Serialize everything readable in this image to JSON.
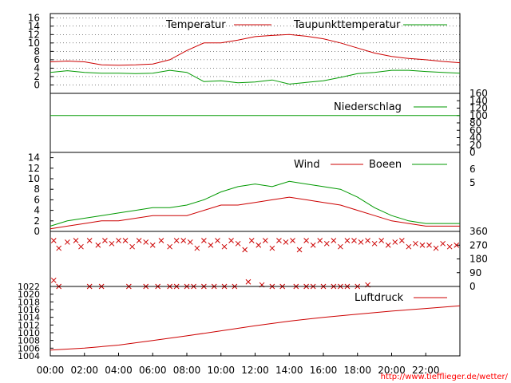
{
  "colors": {
    "primary": "#cc0000",
    "secondary": "#009900",
    "axis": "#000000",
    "credit": "#ff0000"
  },
  "credit": "http://www.tiefflieger.de/wetter/",
  "chart_data": [
    {
      "id": "temperature",
      "type": "line",
      "legend_position": "top-right",
      "grid": true,
      "x_range": [
        0,
        24
      ],
      "ylim": [
        -2,
        17
      ],
      "yticks": [
        "0",
        "2",
        "4",
        "6",
        "8",
        "10",
        "12",
        "14",
        "16"
      ],
      "series": [
        {
          "name": "Temperatur",
          "color": "#cc0000",
          "x": [
            0,
            1,
            2,
            3,
            4,
            5,
            6,
            7,
            8,
            9,
            10,
            11,
            12,
            13,
            14,
            15,
            16,
            17,
            18,
            19,
            20,
            21,
            22,
            23,
            24
          ],
          "values": [
            5.5,
            5.7,
            5.5,
            4.8,
            4.7,
            4.8,
            5.0,
            6.0,
            8.2,
            10.0,
            10.0,
            10.7,
            11.5,
            11.8,
            12.0,
            11.6,
            11.0,
            10.0,
            8.8,
            7.6,
            6.8,
            6.3,
            6.0,
            5.6,
            5.3
          ]
        },
        {
          "name": "Taupunkttemperatur",
          "color": "#009900",
          "x": [
            0,
            1,
            2,
            3,
            4,
            5,
            6,
            7,
            8,
            9,
            10,
            11,
            12,
            13,
            14,
            15,
            16,
            17,
            18,
            19,
            20,
            21,
            22,
            23,
            24
          ],
          "values": [
            3.0,
            3.4,
            3.0,
            2.8,
            2.8,
            2.7,
            2.8,
            3.5,
            3.0,
            0.8,
            1.0,
            0.5,
            0.7,
            1.2,
            0.2,
            0.6,
            1.0,
            1.8,
            2.7,
            3.0,
            3.5,
            3.5,
            3.2,
            3.0,
            2.8
          ]
        }
      ]
    },
    {
      "id": "precipitation",
      "type": "line",
      "legend_position": "top-right",
      "grid": false,
      "x_range": [
        0,
        24
      ],
      "ylim": [
        0,
        160
      ],
      "right_ticks": [
        "0",
        "20",
        "40",
        "60",
        "80",
        "100",
        "120",
        "140",
        "160"
      ],
      "series": [
        {
          "name": "Niederschlag",
          "color": "#009900",
          "x": [
            0,
            24
          ],
          "values": [
            100,
            100
          ]
        }
      ]
    },
    {
      "id": "wind",
      "type": "line",
      "legend_position": "top-right",
      "grid": false,
      "x_range": [
        0,
        24
      ],
      "ylim": [
        0,
        15
      ],
      "yticks": [
        "0",
        "2",
        "4",
        "6",
        "8",
        "10",
        "12",
        "14"
      ],
      "right_ticks": [
        "5",
        "6"
      ],
      "series": [
        {
          "name": "Wind",
          "color": "#cc0000",
          "x": [
            0,
            1,
            2,
            3,
            4,
            5,
            6,
            7,
            8,
            9,
            10,
            11,
            12,
            13,
            14,
            15,
            16,
            17,
            18,
            19,
            20,
            21,
            22,
            23,
            24
          ],
          "values": [
            0.5,
            1.0,
            1.5,
            2.0,
            2.0,
            2.5,
            3.0,
            3.0,
            3.0,
            4.0,
            5.0,
            5.0,
            5.5,
            6.0,
            6.5,
            6.0,
            5.5,
            5.0,
            4.0,
            3.0,
            2.0,
            1.5,
            1.0,
            1.0,
            1.0
          ]
        },
        {
          "name": "Boeen",
          "color": "#009900",
          "x": [
            0,
            1,
            2,
            3,
            4,
            5,
            6,
            7,
            8,
            9,
            10,
            11,
            12,
            13,
            14,
            15,
            16,
            17,
            18,
            19,
            20,
            21,
            22,
            23,
            24
          ],
          "values": [
            1.0,
            2.0,
            2.5,
            3.0,
            3.5,
            4.0,
            4.5,
            4.5,
            5.0,
            6.0,
            7.5,
            8.5,
            9.0,
            8.5,
            9.5,
            9.0,
            8.5,
            8.0,
            6.5,
            4.5,
            3.0,
            2.0,
            1.5,
            1.5,
            1.5
          ]
        }
      ]
    },
    {
      "id": "wind-direction",
      "type": "scatter",
      "grid": false,
      "x_range": [
        0,
        24
      ],
      "ylim": [
        0,
        360
      ],
      "right_ticks": [
        "0",
        "90",
        "180",
        "270",
        "360"
      ],
      "series": [
        {
          "color": "#cc0000",
          "x": [
            0.2,
            0.5,
            1.0,
            1.5,
            1.8,
            2.3,
            2.8,
            3.2,
            3.6,
            4.0,
            4.4,
            4.8,
            5.2,
            5.6,
            6.0,
            6.5,
            7.0,
            7.4,
            7.8,
            8.2,
            8.6,
            9.0,
            9.4,
            9.8,
            10.2,
            10.6,
            11.0,
            11.4,
            11.8,
            12.2,
            12.6,
            13.0,
            13.4,
            13.8,
            14.2,
            14.6,
            15.0,
            15.4,
            15.8,
            16.2,
            16.6,
            17.0,
            17.4,
            17.8,
            18.2,
            18.6,
            19.0,
            19.4,
            19.8,
            20.2,
            20.6,
            21.0,
            21.4,
            21.8,
            22.2,
            22.6,
            23.0,
            23.4,
            23.8
          ],
          "values": [
            300,
            250,
            290,
            300,
            260,
            300,
            270,
            300,
            280,
            300,
            300,
            260,
            300,
            290,
            270,
            300,
            260,
            300,
            300,
            290,
            250,
            300,
            270,
            300,
            260,
            300,
            280,
            240,
            300,
            270,
            300,
            250,
            300,
            290,
            300,
            240,
            300,
            270,
            300,
            280,
            300,
            260,
            300,
            300,
            290,
            300,
            280,
            300,
            270,
            290,
            300,
            260,
            280,
            270,
            270,
            250,
            280,
            260,
            270
          ]
        },
        {
          "color": "#cc0000",
          "x": [
            0.2,
            0.5,
            2.3,
            3.0,
            4.6,
            5.6,
            6.3,
            7.0,
            7.4,
            8.0,
            8.4,
            9.0,
            9.6,
            10.2,
            10.8,
            11.6,
            12.4,
            13.0,
            13.6,
            14.4,
            15.0,
            15.4,
            16.0,
            16.6,
            17.0,
            17.4,
            18.0,
            18.6
          ],
          "values": [
            40,
            0,
            0,
            0,
            0,
            0,
            0,
            0,
            0,
            0,
            0,
            0,
            0,
            0,
            0,
            30,
            10,
            0,
            0,
            0,
            0,
            0,
            0,
            0,
            0,
            0,
            0,
            10
          ]
        }
      ]
    },
    {
      "id": "pressure",
      "type": "line",
      "legend_position": "top-right",
      "grid": false,
      "x_range": [
        0,
        24
      ],
      "xticks": [
        "00:00",
        "02:00",
        "04:00",
        "06:00",
        "08:00",
        "10:00",
        "12:00",
        "14:00",
        "16:00",
        "18:00",
        "20:00",
        "22:00"
      ],
      "ylim": [
        1004,
        1022
      ],
      "yticks": [
        "1004",
        "1006",
        "1008",
        "1010",
        "1012",
        "1014",
        "1016",
        "1018",
        "1020",
        "1022"
      ],
      "series": [
        {
          "name": "Luftdruck",
          "color": "#cc0000",
          "x": [
            0,
            2,
            4,
            6,
            8,
            10,
            12,
            14,
            16,
            18,
            20,
            22,
            24
          ],
          "values": [
            1005.5,
            1006.0,
            1006.8,
            1008.0,
            1009.2,
            1010.5,
            1011.8,
            1013.0,
            1014.0,
            1014.8,
            1015.6,
            1016.3,
            1017.0
          ]
        }
      ]
    }
  ]
}
